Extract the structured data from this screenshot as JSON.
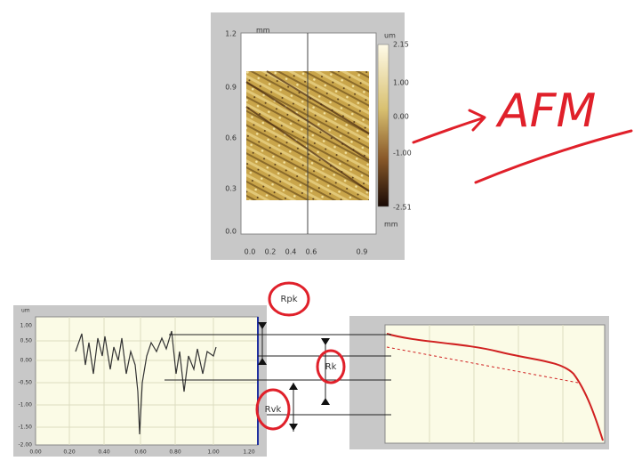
{
  "afm_image": {
    "unit_top": "mm",
    "y_ticks": [
      "1.2",
      "0.9",
      "0.6",
      "0.3",
      "0.0"
    ],
    "x_ticks": [
      "0.0",
      "0.2",
      "0.4",
      "0.6",
      "0.9"
    ],
    "unit_right": "mm",
    "colorbar": {
      "unit": "um",
      "ticks": [
        "2.15",
        "1.00",
        "0.00",
        "-1.00",
        "-2.51"
      ]
    }
  },
  "annotations": {
    "afm": "AFM",
    "rpk": "Rpk",
    "rk": "Rk",
    "rvk": "Rvk"
  },
  "profile_chart": {
    "unit": "um",
    "y_ticks": [
      "1.00",
      "0.50",
      "0.00",
      "-0.50",
      "-1.00",
      "-1.50",
      "-2.00"
    ],
    "x_ticks": [
      "0.00",
      "0.20",
      "0.40",
      "0.60",
      "0.80",
      "1.00",
      "1.20"
    ]
  }
}
